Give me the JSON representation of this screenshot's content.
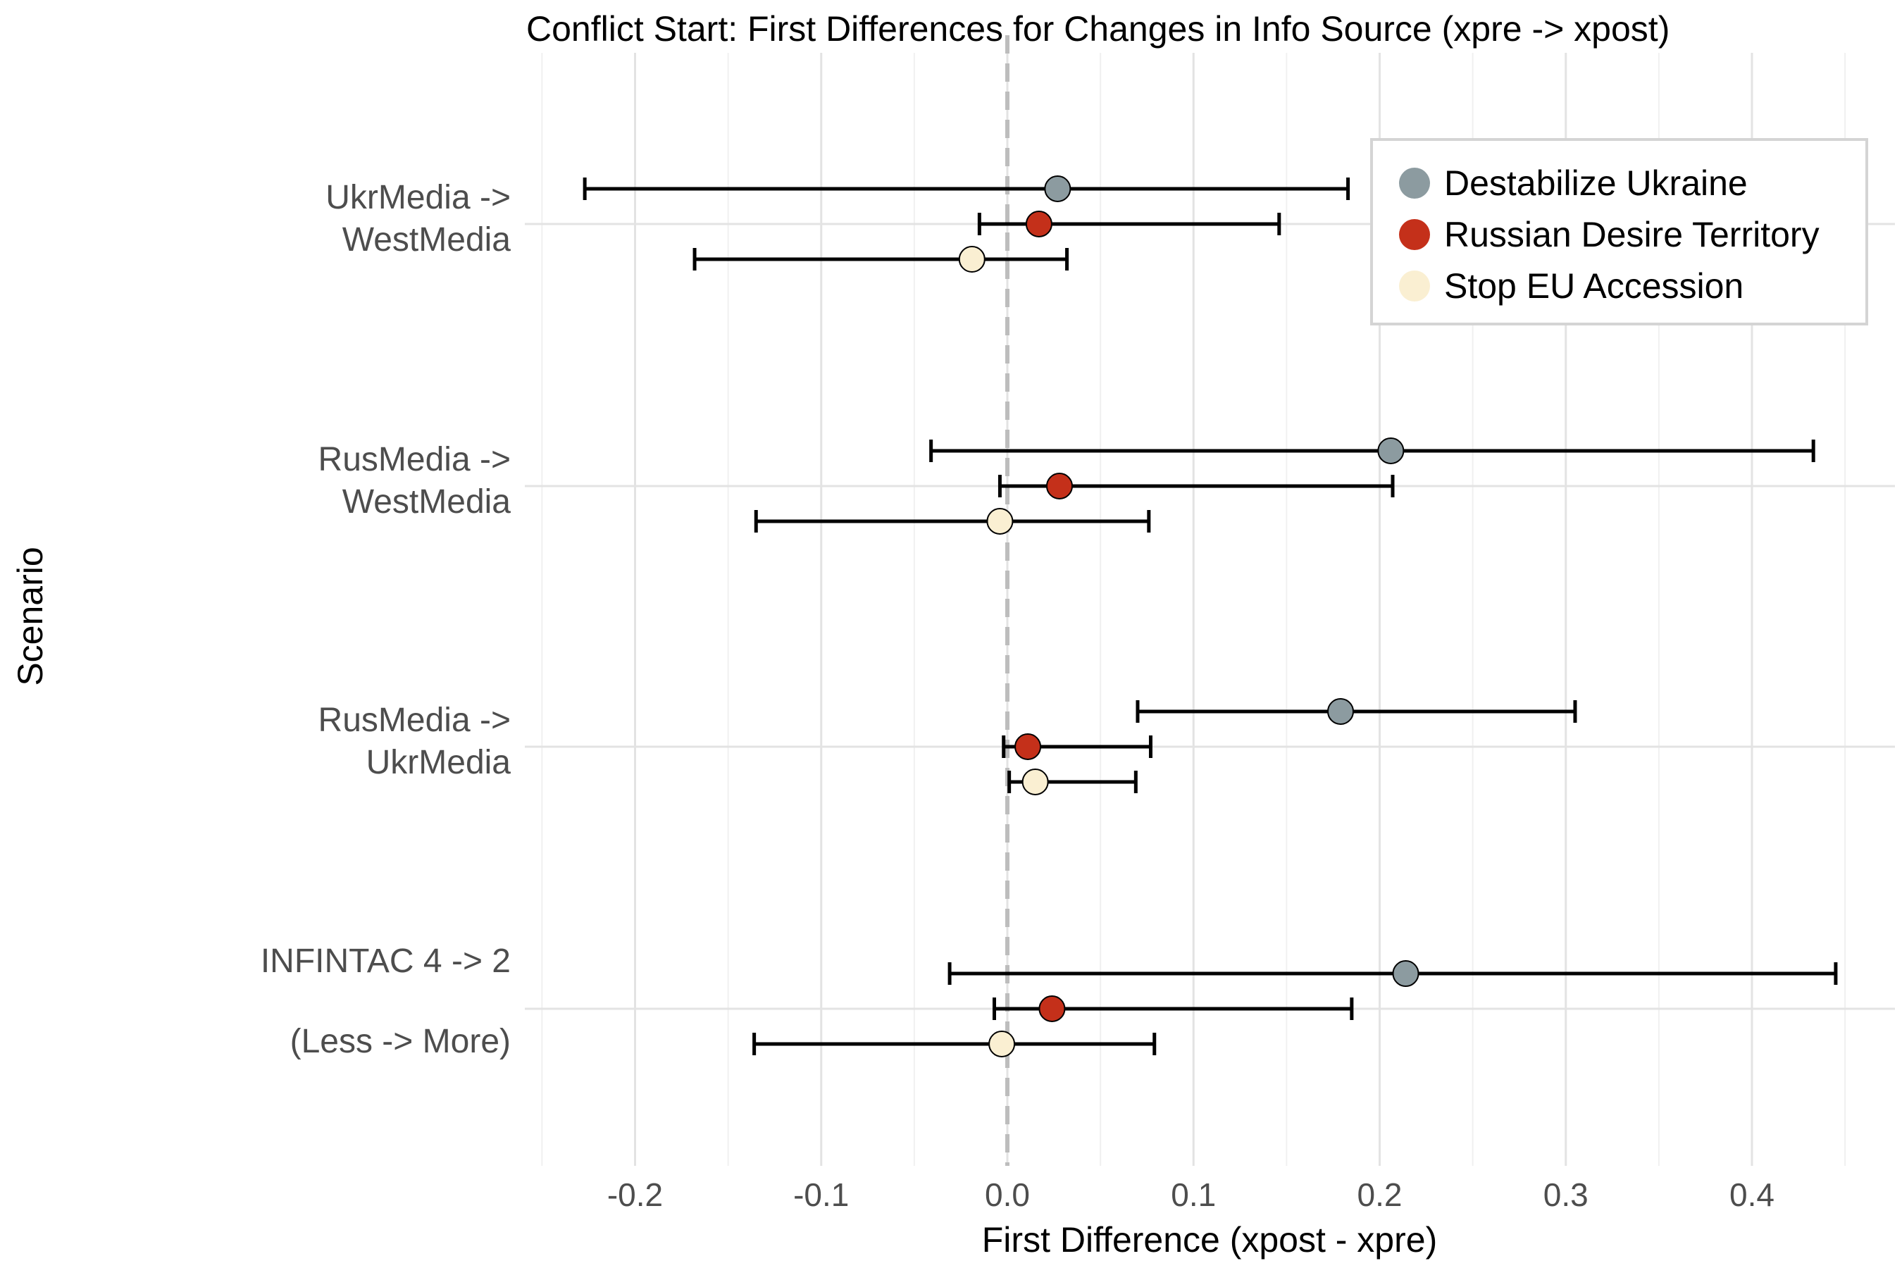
{
  "chart_data": {
    "type": "scatter",
    "title": "Conflict Start: First Differences for Changes in Info Source (xpre -> xpost)",
    "xlabel": "First Difference (xpost - xpre)",
    "ylabel": "Scenario",
    "xlim": [
      -0.25,
      0.46
    ],
    "x_ticks": [
      -0.2,
      -0.1,
      0.0,
      0.1,
      0.2,
      0.3,
      0.4
    ],
    "x_tick_labels": [
      "-0.2",
      "-0.1",
      "0.0",
      "0.1",
      "0.2",
      "0.3",
      "0.4"
    ],
    "grid": true,
    "reference_line": {
      "x": 0.0,
      "style": "dashed",
      "color": "#bdbdbd"
    },
    "legend_position": "top-right",
    "categories": [
      {
        "id": "ukr-west",
        "lines": [
          "UkrMedia ->",
          "WestMedia"
        ]
      },
      {
        "id": "rus-west",
        "lines": [
          "RusMedia ->",
          "WestMedia"
        ]
      },
      {
        "id": "rus-ukr",
        "lines": [
          "RusMedia ->",
          "UkrMedia"
        ]
      },
      {
        "id": "infintac",
        "lines": [
          "INFINTAC 4 -> 2",
          "(Less -> More)"
        ]
      }
    ],
    "series": [
      {
        "name": "Destabilize Ukraine",
        "color": "#8c9ba0",
        "offset": -1,
        "points": [
          {
            "estimate": 0.027,
            "lower": -0.227,
            "upper": 0.183
          },
          {
            "estimate": 0.206,
            "lower": -0.041,
            "upper": 0.433
          },
          {
            "estimate": 0.179,
            "lower": 0.07,
            "upper": 0.305
          },
          {
            "estimate": 0.214,
            "lower": -0.031,
            "upper": 0.445
          }
        ]
      },
      {
        "name": "Russian Desire Territory",
        "color": "#c4301a",
        "offset": 0,
        "points": [
          {
            "estimate": 0.017,
            "lower": -0.015,
            "upper": 0.146
          },
          {
            "estimate": 0.028,
            "lower": -0.004,
            "upper": 0.207
          },
          {
            "estimate": 0.011,
            "lower": -0.002,
            "upper": 0.077
          },
          {
            "estimate": 0.024,
            "lower": -0.007,
            "upper": 0.185
          }
        ]
      },
      {
        "name": "Stop EU Accession",
        "color": "#faefd2",
        "offset": 1,
        "points": [
          {
            "estimate": -0.019,
            "lower": -0.168,
            "upper": 0.032
          },
          {
            "estimate": -0.004,
            "lower": -0.135,
            "upper": 0.076
          },
          {
            "estimate": 0.015,
            "lower": 0.001,
            "upper": 0.069
          },
          {
            "estimate": -0.003,
            "lower": -0.136,
            "upper": 0.079
          }
        ]
      }
    ]
  }
}
